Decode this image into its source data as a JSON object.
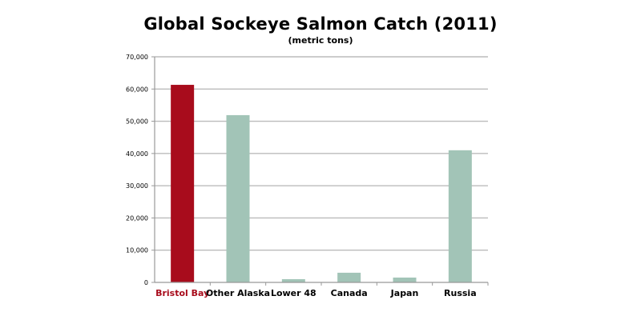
{
  "chart_data": {
    "type": "bar",
    "title": "Global Sockeye Salmon Catch (2011)",
    "subtitle": "(metric tons)",
    "xlabel": "",
    "ylabel": "",
    "categories": [
      "Bristol Bay",
      "Other Alaska",
      "Lower 48",
      "Canada",
      "Japan",
      "Russia"
    ],
    "values": [
      61300,
      51900,
      1000,
      3000,
      1500,
      41000
    ],
    "ylim": [
      0,
      70000
    ],
    "yticks": [
      0,
      10000,
      20000,
      30000,
      40000,
      50000,
      60000,
      70000
    ],
    "ytick_labels": [
      "0",
      "10,000",
      "20,000",
      "30,000",
      "40,000",
      "50,000",
      "60,000",
      "70,000"
    ],
    "grid": true,
    "legend": "none",
    "colors": {
      "highlight": "#a80c1c",
      "default": "#a2c4b7",
      "grid": "#bbbbbb",
      "axis": "#999999",
      "highlight_label": "#a80c1c",
      "label": "#000000"
    },
    "highlight_index": 0
  }
}
